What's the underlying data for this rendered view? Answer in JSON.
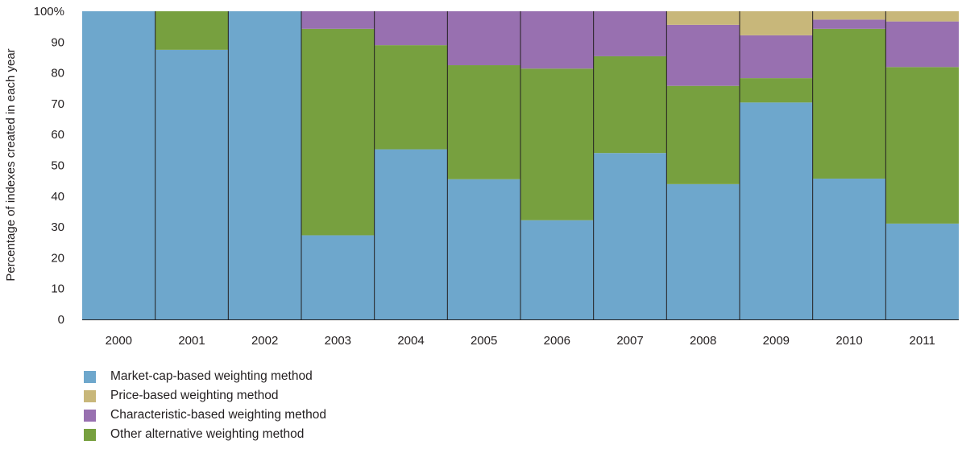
{
  "chart_data": {
    "type": "bar",
    "stacked": true,
    "title": "",
    "xlabel": "",
    "ylabel": "Percentage of indexes created in each year",
    "ylim": [
      0,
      100
    ],
    "yticks": [
      "0",
      "10",
      "20",
      "30",
      "40",
      "50",
      "60",
      "70",
      "80",
      "90",
      "100%"
    ],
    "grid": false,
    "legend_position": "bottom-left",
    "categories": [
      "2000",
      "2001",
      "2002",
      "2003",
      "2004",
      "2005",
      "2006",
      "2007",
      "2008",
      "2009",
      "2010",
      "2011"
    ],
    "series": [
      {
        "name": "Market-cap-based weighting method",
        "color": "#6ea7cc",
        "values": [
          100,
          87.5,
          100,
          27.3,
          55.2,
          45.5,
          32.2,
          54.0,
          43.9,
          70.4,
          45.7,
          31.1
        ]
      },
      {
        "name": "Other alternative weighting method",
        "color": "#77a03f",
        "values": [
          0,
          12.5,
          0,
          67.0,
          33.8,
          37.0,
          49.2,
          31.4,
          31.9,
          7.9,
          48.6,
          50.8
        ]
      },
      {
        "name": "Characteristic-based weighting method",
        "color": "#9870b0",
        "values": [
          0,
          0,
          0,
          5.7,
          11.0,
          17.5,
          18.6,
          14.6,
          19.8,
          13.9,
          3.0,
          14.8
        ]
      },
      {
        "name": "Price-based weighting method",
        "color": "#c8b77a",
        "values": [
          0,
          0,
          0,
          0,
          0,
          0,
          0,
          0,
          4.4,
          7.8,
          2.7,
          3.3
        ]
      }
    ],
    "legend_order": [
      "Market-cap-based weighting method",
      "Price-based weighting method",
      "Characteristic-based weighting method",
      "Other alternative weighting method"
    ]
  }
}
